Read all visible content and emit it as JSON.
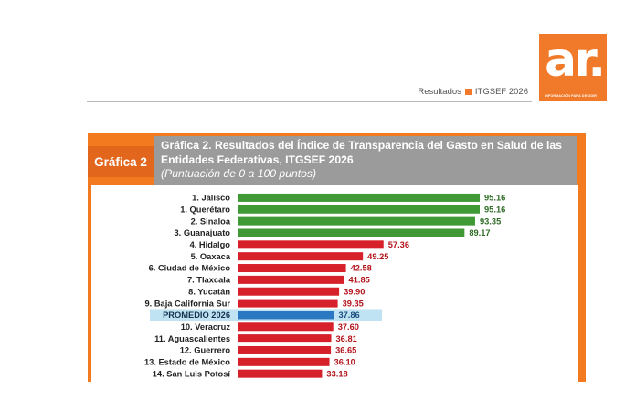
{
  "header": {
    "section": "Resultados",
    "tag": "ITGSEF 2026"
  },
  "logo": {
    "mark": "ar.",
    "tagline": "INFORMACIÓN PARA DECIDIR",
    "color": "#f07a2a"
  },
  "figure": {
    "badge": "Gráfica 2",
    "title_line1": "Gráfica 2. Resultados del Índice de Transparencia del Gasto en Salud de las",
    "title_line2": "Entidades Federativas, ITGSEF 2026",
    "subtitle": "(Puntuación de 0 a 100 puntos)"
  },
  "chart_data": {
    "type": "bar",
    "orientation": "horizontal",
    "categories": [
      "1. Jalisco",
      "1. Querétaro",
      "2. Sinaloa",
      "3. Guanajuato",
      "4. Hidalgo",
      "5. Oaxaca",
      "6. Ciudad de México",
      "7. Tlaxcala",
      "8. Yucatán",
      "9. Baja California Sur",
      "PROMEDIO 2026",
      "10. Veracruz",
      "11. Aguascalientes",
      "12. Guerrero",
      "13. Estado de México",
      "14. San Luis Potosí"
    ],
    "values": [
      95.16,
      95.16,
      93.35,
      89.17,
      57.36,
      49.25,
      42.58,
      41.85,
      39.9,
      39.35,
      37.86,
      37.6,
      36.81,
      36.65,
      36.1,
      33.18
    ],
    "value_labels": [
      "95.16",
      "95.16",
      "93.35",
      "89.17",
      "57.36",
      "49.25",
      "42.58",
      "41.85",
      "39.90",
      "39.35",
      "37.86",
      "37.60",
      "36.81",
      "36.65",
      "36.10",
      "33.18"
    ],
    "bar_colors": [
      "#3f9a35",
      "#3f9a35",
      "#3f9a35",
      "#3f9a35",
      "#d6202a",
      "#d6202a",
      "#d6202a",
      "#d6202a",
      "#d6202a",
      "#d6202a",
      "#2a78c2",
      "#d6202a",
      "#d6202a",
      "#d6202a",
      "#d6202a",
      "#d6202a"
    ],
    "label_colors": [
      "#2e6b25",
      "#2e6b25",
      "#2e6b25",
      "#2e6b25",
      "#b3141c",
      "#b3141c",
      "#b3141c",
      "#b3141c",
      "#b3141c",
      "#b3141c",
      "#1c4f80",
      "#b3141c",
      "#b3141c",
      "#b3141c",
      "#b3141c",
      "#b3141c"
    ],
    "highlight_category": "PROMEDIO 2026",
    "highlight_color": "#bfe3f2",
    "xlim": [
      0,
      100
    ],
    "grid": false,
    "title": "Gráfica 2. Resultados del Índice de Transparencia del Gasto en Salud de las Entidades Federativas, ITGSEF 2026",
    "subtitle": "(Puntuación de 0 a 100 puntos)",
    "xlabel": "",
    "ylabel": ""
  }
}
